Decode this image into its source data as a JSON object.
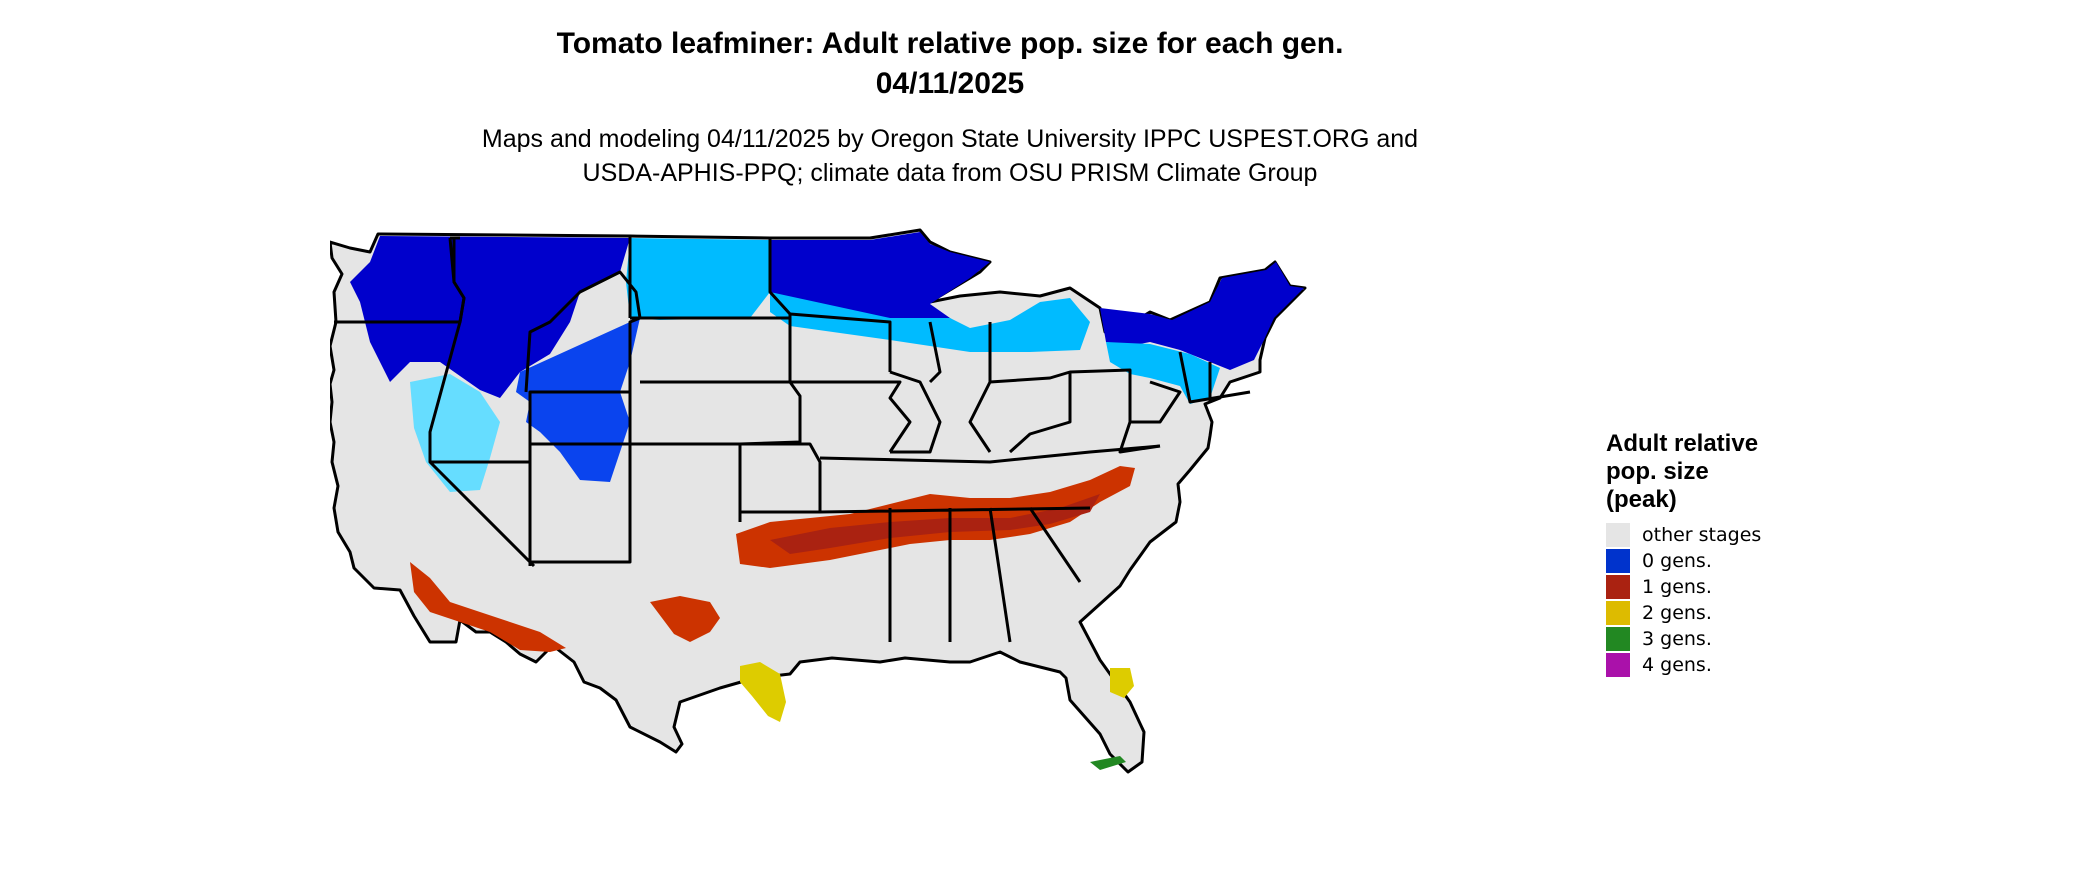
{
  "header": {
    "title_line1": "Tomato leafminer: Adult relative pop. size for each gen.",
    "title_line2": "04/11/2025",
    "subtitle_line1": "Maps and modeling 04/11/2025 by Oregon State University IPPC USPEST.ORG and",
    "subtitle_line2": "USDA-APHIS-PPQ; climate data from OSU PRISM Climate Group"
  },
  "legend": {
    "title_line1": "Adult relative",
    "title_line2": "pop. size",
    "title_line3": "(peak)",
    "items": [
      {
        "label": "other stages",
        "color": "#e5e5e5"
      },
      {
        "label": "0 gens.",
        "color": "#0033cc"
      },
      {
        "label": "1 gens.",
        "color": "#aa2211"
      },
      {
        "label": "2 gens.",
        "color": "#ddbb00"
      },
      {
        "label": "3 gens.",
        "color": "#228822"
      },
      {
        "label": "4 gens.",
        "color": "#aa11aa"
      }
    ]
  },
  "map_colors": {
    "land": "#e5e5e5",
    "border": "#000000",
    "deep_blue": "#0000cc",
    "mid_blue": "#0a44ee",
    "light_blue": "#00bbff",
    "pale_blue": "#66ddff",
    "red": "#cc3300",
    "dark_red": "#aa2211",
    "yellow": "#ddcc00",
    "green": "#228822"
  }
}
